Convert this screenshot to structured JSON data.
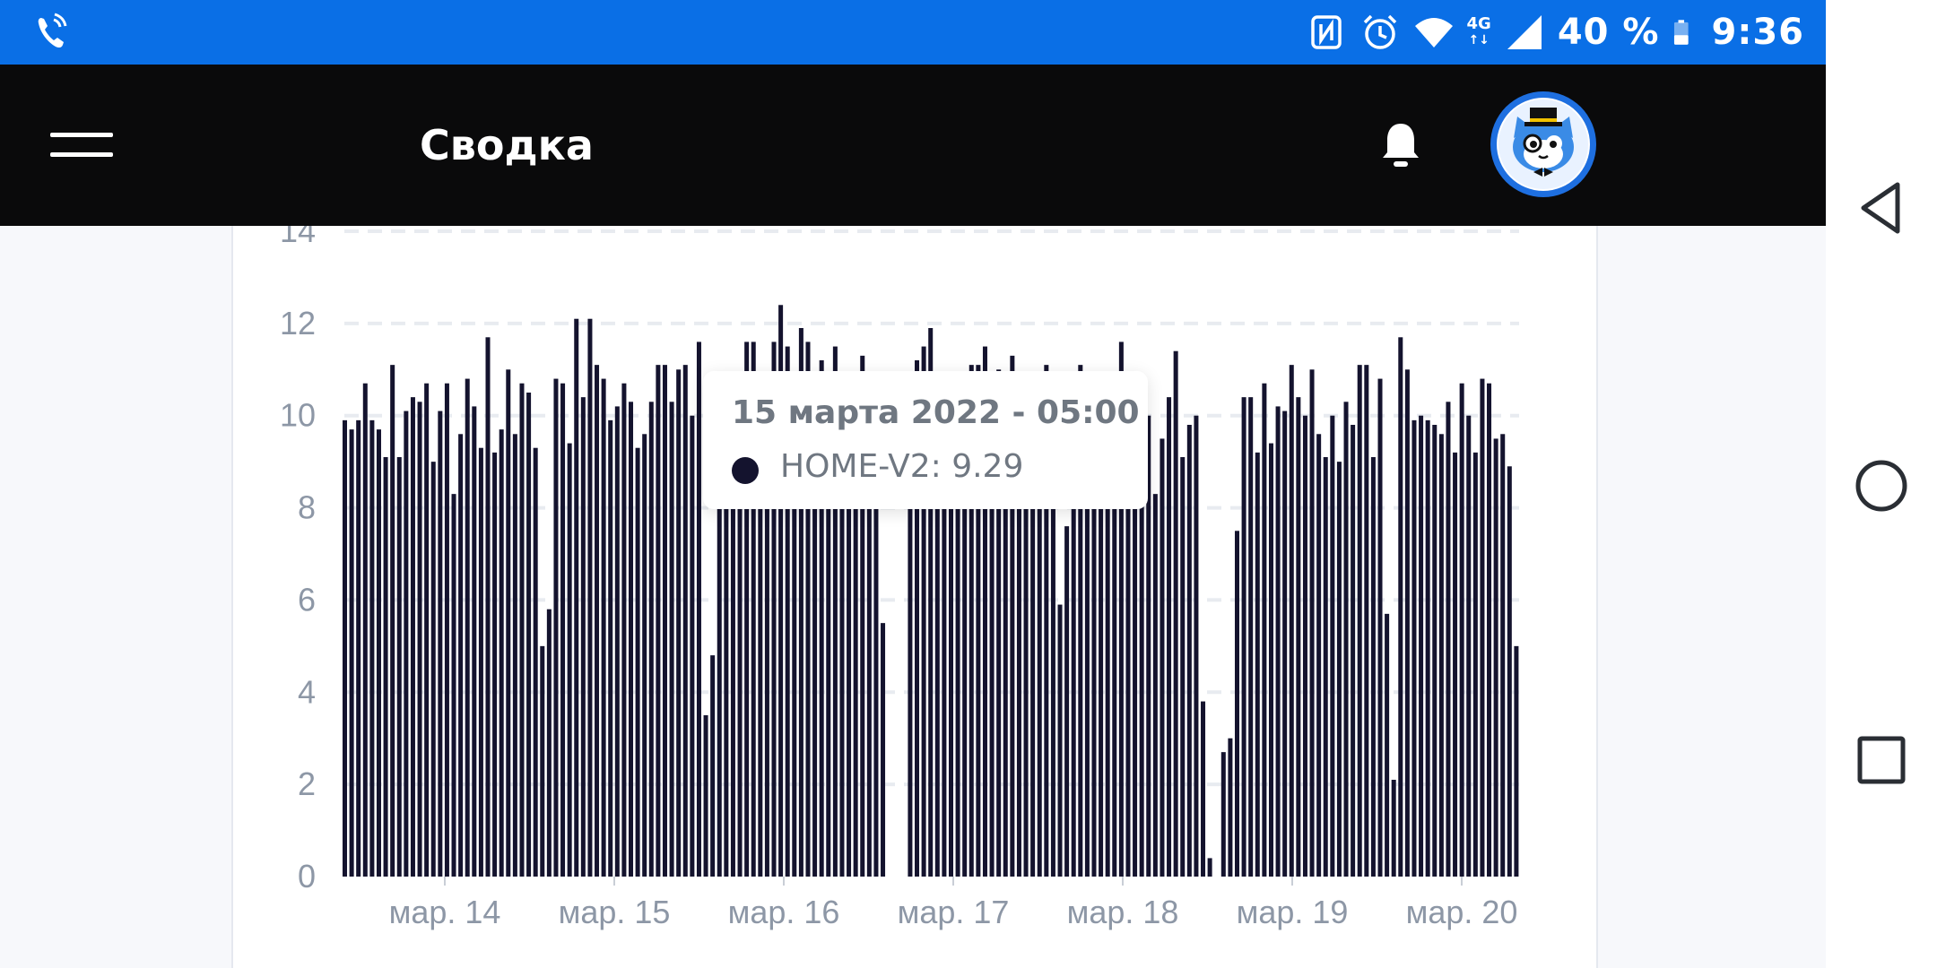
{
  "status_bar": {
    "battery_text": "40 %",
    "time": "9:36",
    "network_type": "4G",
    "icons": [
      "call-in-progress-icon",
      "nfc-icon",
      "alarm-icon",
      "wifi-icon",
      "mobile-signal-icon",
      "battery-icon"
    ]
  },
  "app_bar": {
    "title": "Сводка",
    "icons": [
      "menu-icon",
      "bell-icon",
      "avatar"
    ]
  },
  "tooltip": {
    "title": "15 марта 2022 - 05:00",
    "series_label": "HOME-V2: 9.29"
  },
  "nav_bar": {
    "icons": [
      "back-icon",
      "home-icon",
      "recents-icon"
    ]
  },
  "colors": {
    "status_bar": "#0a6fe6",
    "app_bar": "#0a0a0b",
    "bar": "#14132e",
    "tick_text": "#8d97a6",
    "grid": "#e8ebf0"
  },
  "chart_data": {
    "type": "bar",
    "series": [
      {
        "name": "HOME-V2"
      }
    ],
    "ylim": [
      0,
      14
    ],
    "yticks": [
      "0",
      "2",
      "4",
      "6",
      "8",
      "10",
      "12",
      "14"
    ],
    "xticks": [
      "мар. 14",
      "мар. 15",
      "мар. 16",
      "мар. 17",
      "мар. 18",
      "мар. 19",
      "мар. 20"
    ],
    "grid": "horizontal dashed",
    "values": [
      9.9,
      9.7,
      9.9,
      10.7,
      9.9,
      9.7,
      9.1,
      11.1,
      9.1,
      10.1,
      10.4,
      10.3,
      10.7,
      9.0,
      10.1,
      10.7,
      8.3,
      9.6,
      10.8,
      10.2,
      9.3,
      11.7,
      9.2,
      9.7,
      11.0,
      9.6,
      10.7,
      10.5,
      9.3,
      5.0,
      5.8,
      10.8,
      10.7,
      9.4,
      12.1,
      10.4,
      12.1,
      11.1,
      10.8,
      9.9,
      10.2,
      10.7,
      10.3,
      9.3,
      9.6,
      10.3,
      11.1,
      11.1,
      10.3,
      11.0,
      11.1,
      10.0,
      11.6,
      3.5,
      4.8,
      9.8,
      9.5,
      10.5,
      10.7,
      11.6,
      11.6,
      10.3,
      9.3,
      11.6,
      12.4,
      11.5,
      10.4,
      11.9,
      11.6,
      10.4,
      11.2,
      10.3,
      11.5,
      10.5,
      10.2,
      10.8,
      11.3,
      10.8,
      9.9,
      5.5,
      0,
      0,
      0,
      9.9,
      11.2,
      11.5,
      11.9,
      10.3,
      10.8,
      9.4,
      10.4,
      9.1,
      11.1,
      11.1,
      11.5,
      9.8,
      11.0,
      9.0,
      11.3,
      10.0,
      8.0,
      9.7,
      10.8,
      11.1,
      8.5,
      5.9,
      7.6,
      10.8,
      11.1,
      10.2,
      9.8,
      10.9,
      10.1,
      10.0,
      11.6,
      9.0,
      10.1,
      9.9,
      10.0,
      8.3,
      9.5,
      10.4,
      11.4,
      9.1,
      9.8,
      10.0,
      3.8,
      0.4,
      0,
      2.7,
      3.0,
      7.5,
      10.4,
      10.4,
      9.2,
      10.7,
      9.4,
      10.2,
      10.1,
      11.1,
      10.4,
      10.0,
      11.0,
      9.6,
      9.1,
      10.0,
      9.0,
      10.3,
      9.8,
      11.1,
      11.1,
      9.1,
      10.8,
      5.7,
      2.1,
      11.7,
      11.0,
      9.9,
      10.0,
      9.9,
      9.8,
      9.6,
      10.3,
      9.2,
      10.7,
      10.0,
      9.2,
      10.8,
      10.7,
      9.5,
      9.6,
      8.9,
      5.0
    ]
  }
}
